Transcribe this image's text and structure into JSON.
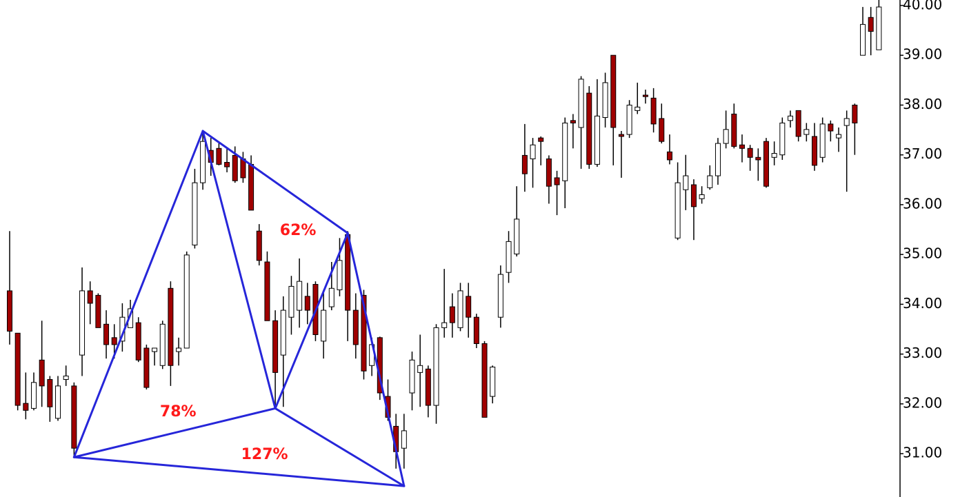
{
  "chart_data": {
    "type": "candlestick",
    "up_color": "#ffffff",
    "down_color": "#a00000",
    "wick_color": "#000000",
    "ylim": [
      30.13,
      40.11
    ],
    "yticks": [
      {
        "value": 31,
        "label": "31.00"
      },
      {
        "value": 32,
        "label": "32.00"
      },
      {
        "value": 33,
        "label": "33.00"
      },
      {
        "value": 34,
        "label": "34.00"
      },
      {
        "value": 35,
        "label": "35.00"
      },
      {
        "value": 36,
        "label": "36.00"
      },
      {
        "value": 37,
        "label": "37.00"
      },
      {
        "value": 38,
        "label": "38.00"
      },
      {
        "value": 39,
        "label": "39.00"
      },
      {
        "value": 40,
        "label": "40.00"
      }
    ],
    "open": [
      34.27,
      33.42,
      32.01,
      31.91,
      32.88,
      32.49,
      31.71,
      32.49,
      32.36,
      32.98,
      34.27,
      34.18,
      33.6,
      33.33,
      33.26,
      33.53,
      33.63,
      33.12,
      33.05,
      32.77,
      34.32,
      33.05,
      33.12,
      35.19,
      36.44,
      37.09,
      37.13,
      36.85,
      36.99,
      36.92,
      36.81,
      35.47,
      34.85,
      33.67,
      32.98,
      33.74,
      33.88,
      34.16,
      34.4,
      33.26,
      33.95,
      34.29,
      35.4,
      33.88,
      34.18,
      32.77,
      33.33,
      32.15,
      31.55,
      31.11,
      32.22,
      32.63,
      32.7,
      31.97,
      33.53,
      33.95,
      33.53,
      34.16,
      33.74,
      33.21,
      32.15,
      33.74,
      34.64,
      35.01,
      36.99,
      36.92,
      37.34,
      36.92,
      36.54,
      36.48,
      37.69,
      37.55,
      38.24,
      36.81,
      37.75,
      39.0,
      37.41,
      37.41,
      37.89,
      38.2,
      38.14,
      37.73,
      37.06,
      35.33,
      36.3,
      36.4,
      36.12,
      36.34,
      36.58,
      37.23,
      37.82,
      37.2,
      37.13,
      36.95,
      37.27,
      36.95,
      37.0,
      37.69,
      37.89,
      37.41,
      37.37,
      36.95,
      37.62,
      37.34,
      37.59,
      38.0,
      39.0,
      39.76,
      39.11
    ],
    "high": [
      35.47,
      33.42,
      32.63,
      32.63,
      33.67,
      32.56,
      32.56,
      32.77,
      32.43,
      34.74,
      34.46,
      34.22,
      33.88,
      33.6,
      34.02,
      34.09,
      33.74,
      33.19,
      33.12,
      33.67,
      34.46,
      33.33,
      35.06,
      36.72,
      37.48,
      37.34,
      37.27,
      37.13,
      37.17,
      37.06,
      36.99,
      35.61,
      35.06,
      33.88,
      34.16,
      34.57,
      34.92,
      34.43,
      34.46,
      34.29,
      34.85,
      35.33,
      35.47,
      34.22,
      34.29,
      33.33,
      33.35,
      32.49,
      31.8,
      31.8,
      33.05,
      33.39,
      32.77,
      33.6,
      34.71,
      34.22,
      34.43,
      34.43,
      33.81,
      33.26,
      32.77,
      34.78,
      35.47,
      36.37,
      37.62,
      37.34,
      37.37,
      36.99,
      36.68,
      37.75,
      37.82,
      38.58,
      38.38,
      38.52,
      38.65,
      39.0,
      37.48,
      38.1,
      38.45,
      38.31,
      38.34,
      38.03,
      37.41,
      36.85,
      37.0,
      36.51,
      36.37,
      36.79,
      37.34,
      37.89,
      38.03,
      37.41,
      37.2,
      37.13,
      37.34,
      37.27,
      37.75,
      37.89,
      37.89,
      37.64,
      37.64,
      37.75,
      37.69,
      37.55,
      37.89,
      38.03,
      39.97,
      39.97,
      40.11
    ],
    "low": [
      33.19,
      31.87,
      31.69,
      31.87,
      31.94,
      31.64,
      31.66,
      32.36,
      30.93,
      32.56,
      33.6,
      33.53,
      32.91,
      32.91,
      33.05,
      33.53,
      32.84,
      32.29,
      32.77,
      32.7,
      32.36,
      32.77,
      33.12,
      35.12,
      36.3,
      36.58,
      36.79,
      36.65,
      36.44,
      36.44,
      35.89,
      34.78,
      33.67,
      31.94,
      31.94,
      33.39,
      33.53,
      33.6,
      33.26,
      32.91,
      33.88,
      34.16,
      33.26,
      32.91,
      32.49,
      32.56,
      32.08,
      31.66,
      30.7,
      30.7,
      31.87,
      31.94,
      31.73,
      31.6,
      33.33,
      33.33,
      33.46,
      33.33,
      33.12,
      31.73,
      32.01,
      33.53,
      34.43,
      34.96,
      36.26,
      36.34,
      36.79,
      36.02,
      35.79,
      35.93,
      37.13,
      36.72,
      36.72,
      36.76,
      37.55,
      36.79,
      36.54,
      37.34,
      37.82,
      38.03,
      37.45,
      37.23,
      36.81,
      35.29,
      35.89,
      35.29,
      36.02,
      36.3,
      36.4,
      37.13,
      37.13,
      36.85,
      36.68,
      36.48,
      36.34,
      36.79,
      36.9,
      37.55,
      37.27,
      37.27,
      36.68,
      36.85,
      37.27,
      37.06,
      36.26,
      37.0,
      39.0,
      39.0,
      39.11
    ],
    "close": [
      33.46,
      31.97,
      31.87,
      32.43,
      32.36,
      31.94,
      32.36,
      32.56,
      31.11,
      34.27,
      34.02,
      33.53,
      33.19,
      33.19,
      33.74,
      33.91,
      32.88,
      32.33,
      33.12,
      33.6,
      32.77,
      33.12,
      34.99,
      36.44,
      37.27,
      36.85,
      36.81,
      36.76,
      36.48,
      36.54,
      35.89,
      34.88,
      33.67,
      32.63,
      33.88,
      34.36,
      34.46,
      33.88,
      33.39,
      33.88,
      34.32,
      34.88,
      33.88,
      33.19,
      32.66,
      33.19,
      32.22,
      31.73,
      31.04,
      31.46,
      32.88,
      32.77,
      31.97,
      33.53,
      33.63,
      33.63,
      34.27,
      33.74,
      33.21,
      31.73,
      32.74,
      34.6,
      35.26,
      35.71,
      36.62,
      37.2,
      37.27,
      36.37,
      36.4,
      37.64,
      37.64,
      38.52,
      36.81,
      37.78,
      38.45,
      37.55,
      37.37,
      38.0,
      37.96,
      38.17,
      37.62,
      37.27,
      36.9,
      36.44,
      36.58,
      35.96,
      36.2,
      36.58,
      37.23,
      37.51,
      37.17,
      37.13,
      36.95,
      36.9,
      36.37,
      37.03,
      37.64,
      37.78,
      37.37,
      37.51,
      36.79,
      37.62,
      37.48,
      37.41,
      37.73,
      37.64,
      39.62,
      39.48,
      39.97
    ],
    "pattern": {
      "color": "#2626d9",
      "points": [
        {
          "x": 8,
          "y": 30.93
        },
        {
          "x": 24,
          "y": 37.48
        },
        {
          "x": 33,
          "y": 31.91
        },
        {
          "x": 42,
          "y": 35.43
        },
        {
          "x": 49,
          "y": 30.35
        }
      ],
      "labels": [
        "62%",
        "78%",
        "127%"
      ]
    }
  }
}
